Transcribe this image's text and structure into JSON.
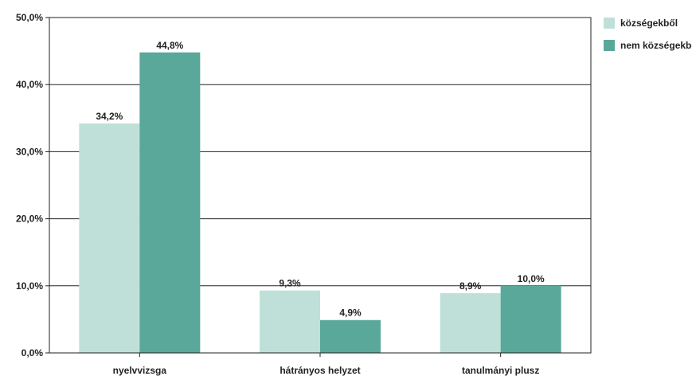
{
  "chart_data": {
    "type": "bar",
    "title": "",
    "xlabel": "",
    "ylabel": "",
    "categories": [
      "nyelvvizsga",
      "hátrányos helyzet",
      "tanulmányi plusz"
    ],
    "series": [
      {
        "name": "községekből",
        "values": [
          34.2,
          9.3,
          8.9
        ],
        "labels": [
          "34,2%",
          "9,3%",
          "8,9%"
        ],
        "color": "#bfe0d8"
      },
      {
        "name": "nem községekből",
        "values": [
          44.8,
          4.9,
          10.0
        ],
        "labels": [
          "44,8%",
          "4,9%",
          "10,0%"
        ],
        "color": "#5aa89a"
      }
    ],
    "ylim": [
      0,
      50
    ],
    "yticks": [
      0,
      10,
      20,
      30,
      40,
      50
    ],
    "ytick_labels": [
      "0,0%",
      "10,0%",
      "20,0%",
      "30,0%",
      "40,0%",
      "50,0%"
    ],
    "grid": true,
    "legend_position": "top-right"
  }
}
